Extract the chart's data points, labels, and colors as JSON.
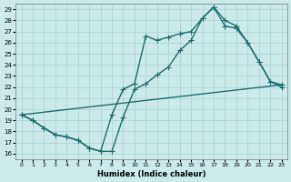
{
  "xlabel": "Humidex (Indice chaleur)",
  "bg_color": "#cceaea",
  "grid_color": "#b0d8d8",
  "line_color": "#1a6e6e",
  "xlim": [
    -0.5,
    23.5
  ],
  "ylim": [
    15.5,
    29.5
  ],
  "xticks": [
    0,
    1,
    2,
    3,
    4,
    5,
    6,
    7,
    8,
    9,
    10,
    11,
    12,
    13,
    14,
    15,
    16,
    17,
    18,
    19,
    20,
    21,
    22,
    23
  ],
  "yticks": [
    16,
    17,
    18,
    19,
    20,
    21,
    22,
    23,
    24,
    25,
    26,
    27,
    28,
    29
  ],
  "line1_x": [
    0,
    1,
    2,
    3,
    4,
    5,
    6,
    7,
    8,
    9,
    10,
    11,
    12,
    13,
    14,
    15,
    16,
    17,
    18,
    19,
    20,
    21,
    22,
    23
  ],
  "line1_y": [
    19.5,
    19.0,
    18.3,
    17.7,
    17.5,
    17.2,
    16.5,
    16.2,
    16.2,
    19.3,
    21.8,
    22.3,
    23.1,
    23.8,
    25.3,
    26.2,
    28.2,
    29.2,
    28.0,
    27.5,
    26.0,
    24.3,
    22.5,
    22.2
  ],
  "line2_x": [
    0,
    1,
    2,
    3,
    4,
    5,
    6,
    7,
    8,
    9,
    10,
    11,
    12,
    13,
    14,
    15,
    16,
    17,
    18,
    19,
    20,
    21,
    22,
    23
  ],
  "line2_y": [
    19.5,
    19.0,
    18.3,
    17.7,
    17.5,
    17.2,
    16.5,
    16.2,
    19.5,
    21.8,
    22.3,
    26.6,
    26.2,
    26.5,
    26.8,
    27.0,
    28.2,
    29.2,
    27.5,
    27.3,
    26.0,
    24.3,
    22.5,
    22.0
  ],
  "line3_x": [
    0,
    23
  ],
  "line3_y": [
    19.5,
    22.2
  ],
  "marker_size": 2.5,
  "line_width": 1.0
}
